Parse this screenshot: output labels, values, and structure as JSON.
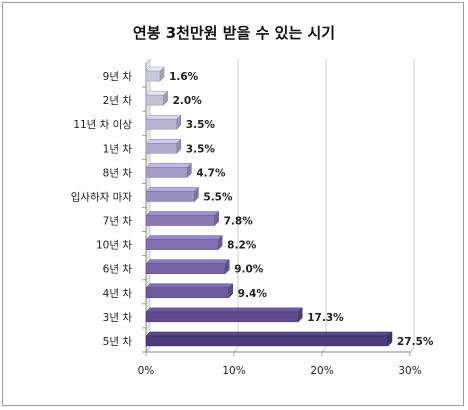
{
  "chart_data": {
    "type": "bar",
    "orientation": "horizontal",
    "title": "연봉 3천만원 받을 수 있는 시기",
    "categories": [
      "9년 차",
      "2년 차",
      "11년 차 이상",
      "1년 차",
      "8년 차",
      "입사하자 마자",
      "7년 차",
      "10년 차",
      "6년 차",
      "4년 차",
      "3년 차",
      "5년 차"
    ],
    "values": [
      1.6,
      2.0,
      3.5,
      3.5,
      4.7,
      5.5,
      7.8,
      8.2,
      9.0,
      9.4,
      17.3,
      27.5
    ],
    "value_labels": [
      "1.6%",
      "2.0%",
      "3.5%",
      "3.5%",
      "4.7%",
      "5.5%",
      "7.8%",
      "8.2%",
      "9.0%",
      "9.4%",
      "17.3%",
      "27.5%"
    ],
    "xlim": [
      0,
      30
    ],
    "x_ticks": [
      "0%",
      "10%",
      "20%",
      "30%"
    ],
    "grid": true,
    "colors": [
      "#c8c6dc",
      "#c3c1d8",
      "#b9b4d2",
      "#b1acce",
      "#a49bc6",
      "#9b8fc0",
      "#8a79b5",
      "#8270ae",
      "#7664a5",
      "#6e5b9d",
      "#5f4a8c",
      "#4e3b79"
    ]
  }
}
